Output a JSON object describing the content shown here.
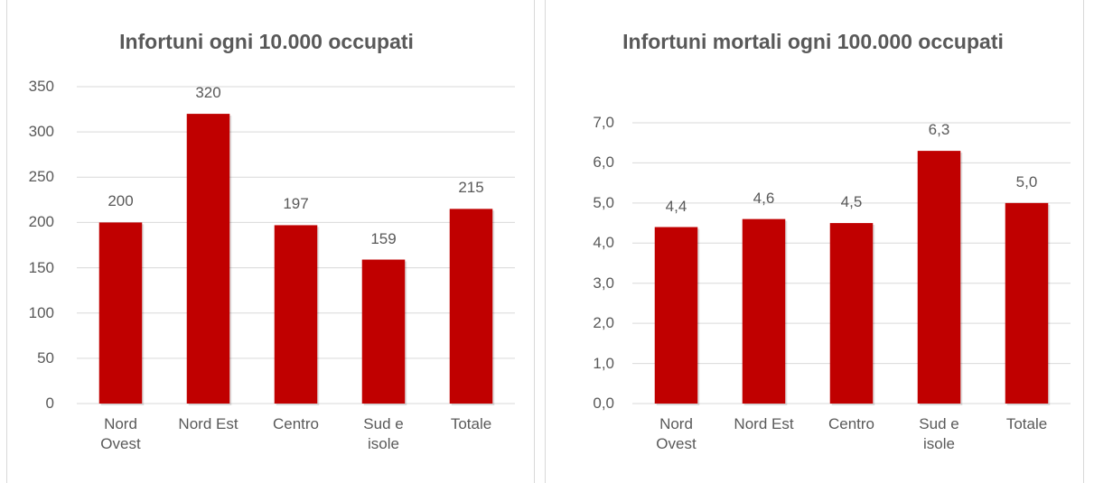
{
  "chart_data": [
    {
      "type": "bar",
      "title": "Infortuni ogni 10.000 occupati",
      "categories": [
        "Nord Ovest",
        "Nord Est",
        "Centro",
        "Sud e isole",
        "Totale"
      ],
      "values": [
        200,
        320,
        197,
        159,
        215
      ],
      "color": "#c00000",
      "ylim": [
        0,
        350
      ],
      "yticks": [
        0,
        50,
        100,
        150,
        200,
        250,
        300,
        350
      ],
      "grid": true
    },
    {
      "type": "bar",
      "title": "Infortuni mortali ogni 100.000 occupati",
      "categories": [
        "Nord Ovest",
        "Nord Est",
        "Centro",
        "Sud e isole",
        "Totale"
      ],
      "values": [
        4.4,
        4.6,
        4.5,
        6.3,
        5.0
      ],
      "value_labels": [
        "4,4",
        "4,6",
        "4,5",
        "6,3",
        "5,0"
      ],
      "color": "#c00000",
      "ylim": [
        0,
        7
      ],
      "yticks": [
        {
          "value": 0,
          "label": "0,0"
        },
        {
          "value": 1,
          "label": "1,0"
        },
        {
          "value": 2,
          "label": "2,0"
        },
        {
          "value": 3,
          "label": "3,0"
        },
        {
          "value": 4,
          "label": "4,0"
        },
        {
          "value": 5,
          "label": "5,0"
        },
        {
          "value": 6,
          "label": "6,0"
        },
        {
          "value": 7,
          "label": "7,0"
        }
      ],
      "grid": true
    }
  ]
}
